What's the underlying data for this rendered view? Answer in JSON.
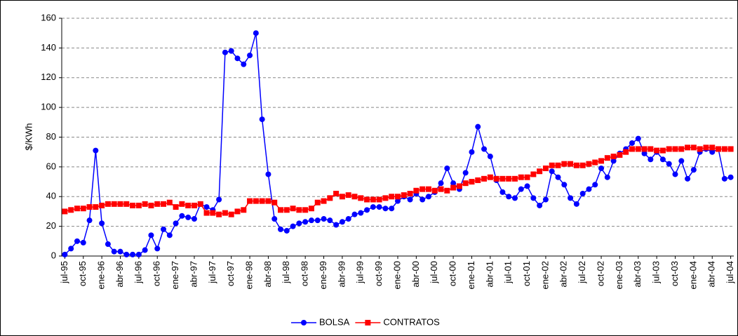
{
  "chart_data": {
    "type": "line",
    "y_label": "$/KWh",
    "categories": [
      "jul-95",
      null,
      null,
      "oct-95",
      null,
      null,
      "ene-96",
      null,
      null,
      "abr-96",
      null,
      null,
      "jul-96",
      null,
      null,
      "oct-96",
      null,
      null,
      "ene-97",
      null,
      null,
      "abr-97",
      null,
      null,
      "jul-97",
      null,
      null,
      "oct-97",
      null,
      null,
      "ene-98",
      null,
      null,
      "abr-98",
      null,
      null,
      "jul-98",
      null,
      null,
      "oct-98",
      null,
      null,
      "ene-99",
      null,
      null,
      "abr-99",
      null,
      null,
      "jul-99",
      null,
      null,
      "oct-99",
      null,
      null,
      "ene-00",
      null,
      null,
      "abr-00",
      null,
      null,
      "jul-00",
      null,
      null,
      "oct-00",
      null,
      null,
      "ene-01",
      null,
      null,
      "abr-01",
      null,
      null,
      "jul-01",
      null,
      null,
      "oct-01",
      null,
      null,
      "ene-02",
      null,
      null,
      "abr-02",
      null,
      null,
      "jul-02",
      null,
      null,
      "oct-02",
      null,
      null,
      "ene-03",
      null,
      null,
      "abr-03",
      null,
      null,
      "jul-03",
      null,
      null,
      "oct-03",
      null,
      null,
      "ene-04",
      null,
      null,
      "abr-04",
      null,
      null,
      "jul-04"
    ],
    "series": [
      {
        "name": "BOLSA",
        "color": "#0000ff",
        "marker": "circle",
        "values": [
          1,
          5,
          10,
          9,
          24,
          71,
          22,
          8,
          3,
          3,
          1,
          1,
          1,
          4,
          14,
          5,
          18,
          14,
          22,
          27,
          26,
          25,
          35,
          33,
          31,
          38,
          137,
          138,
          133,
          129,
          135,
          150,
          92,
          55,
          25,
          18,
          17,
          20,
          22,
          23,
          24,
          24,
          25,
          24,
          21,
          23,
          25,
          28,
          29,
          31,
          33,
          33,
          32,
          32,
          37,
          40,
          38,
          42,
          38,
          40,
          43,
          49,
          59,
          49,
          45,
          56,
          70,
          87,
          72,
          67,
          51,
          43,
          40,
          39,
          45,
          47,
          39,
          34,
          38,
          57,
          53,
          48,
          39,
          35,
          42,
          45,
          48,
          59,
          53,
          64,
          69,
          72,
          76,
          79,
          69,
          65,
          70,
          65,
          62,
          55,
          64,
          52,
          58,
          70,
          72,
          70,
          72,
          52,
          53
        ]
      },
      {
        "name": "CONTRATOS",
        "color": "#ff0000",
        "marker": "square",
        "values": [
          30,
          31,
          32,
          32,
          33,
          33,
          34,
          35,
          35,
          35,
          35,
          34,
          34,
          35,
          34,
          35,
          35,
          36,
          33,
          35,
          34,
          34,
          35,
          29,
          29,
          28,
          29,
          28,
          30,
          31,
          37,
          37,
          37,
          37,
          36,
          31,
          31,
          32,
          31,
          31,
          32,
          36,
          37,
          39,
          42,
          40,
          41,
          40,
          39,
          38,
          38,
          38,
          39,
          40,
          40,
          41,
          42,
          44,
          45,
          45,
          44,
          45,
          44,
          46,
          47,
          49,
          50,
          51,
          52,
          53,
          52,
          52,
          52,
          52,
          53,
          53,
          55,
          57,
          59,
          61,
          61,
          62,
          62,
          61,
          61,
          62,
          63,
          64,
          66,
          67,
          68,
          70,
          72,
          72,
          72,
          72,
          71,
          71,
          72,
          72,
          72,
          73,
          73,
          72,
          73,
          73,
          72,
          72,
          72
        ]
      }
    ],
    "ylim": [
      0,
      160
    ],
    "yticks": [
      0,
      20,
      40,
      60,
      80,
      100,
      120,
      140,
      160
    ],
    "grid": true,
    "legend": "bottom"
  }
}
